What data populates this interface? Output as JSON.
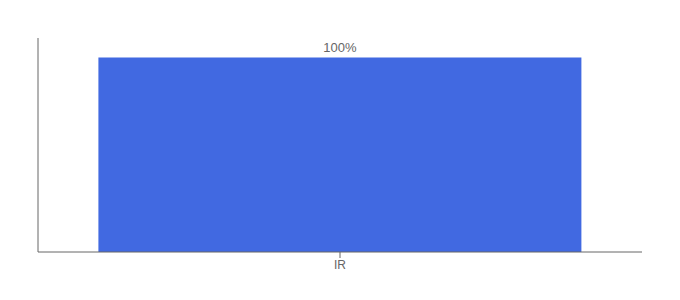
{
  "chart_data": {
    "type": "bar",
    "categories": [
      "IR"
    ],
    "values": [
      100
    ],
    "value_labels": [
      "100%"
    ],
    "data_labels": true,
    "color": "#4169E1",
    "ylim": [
      0,
      110
    ],
    "yticks": [],
    "tick_labels": "x"
  }
}
